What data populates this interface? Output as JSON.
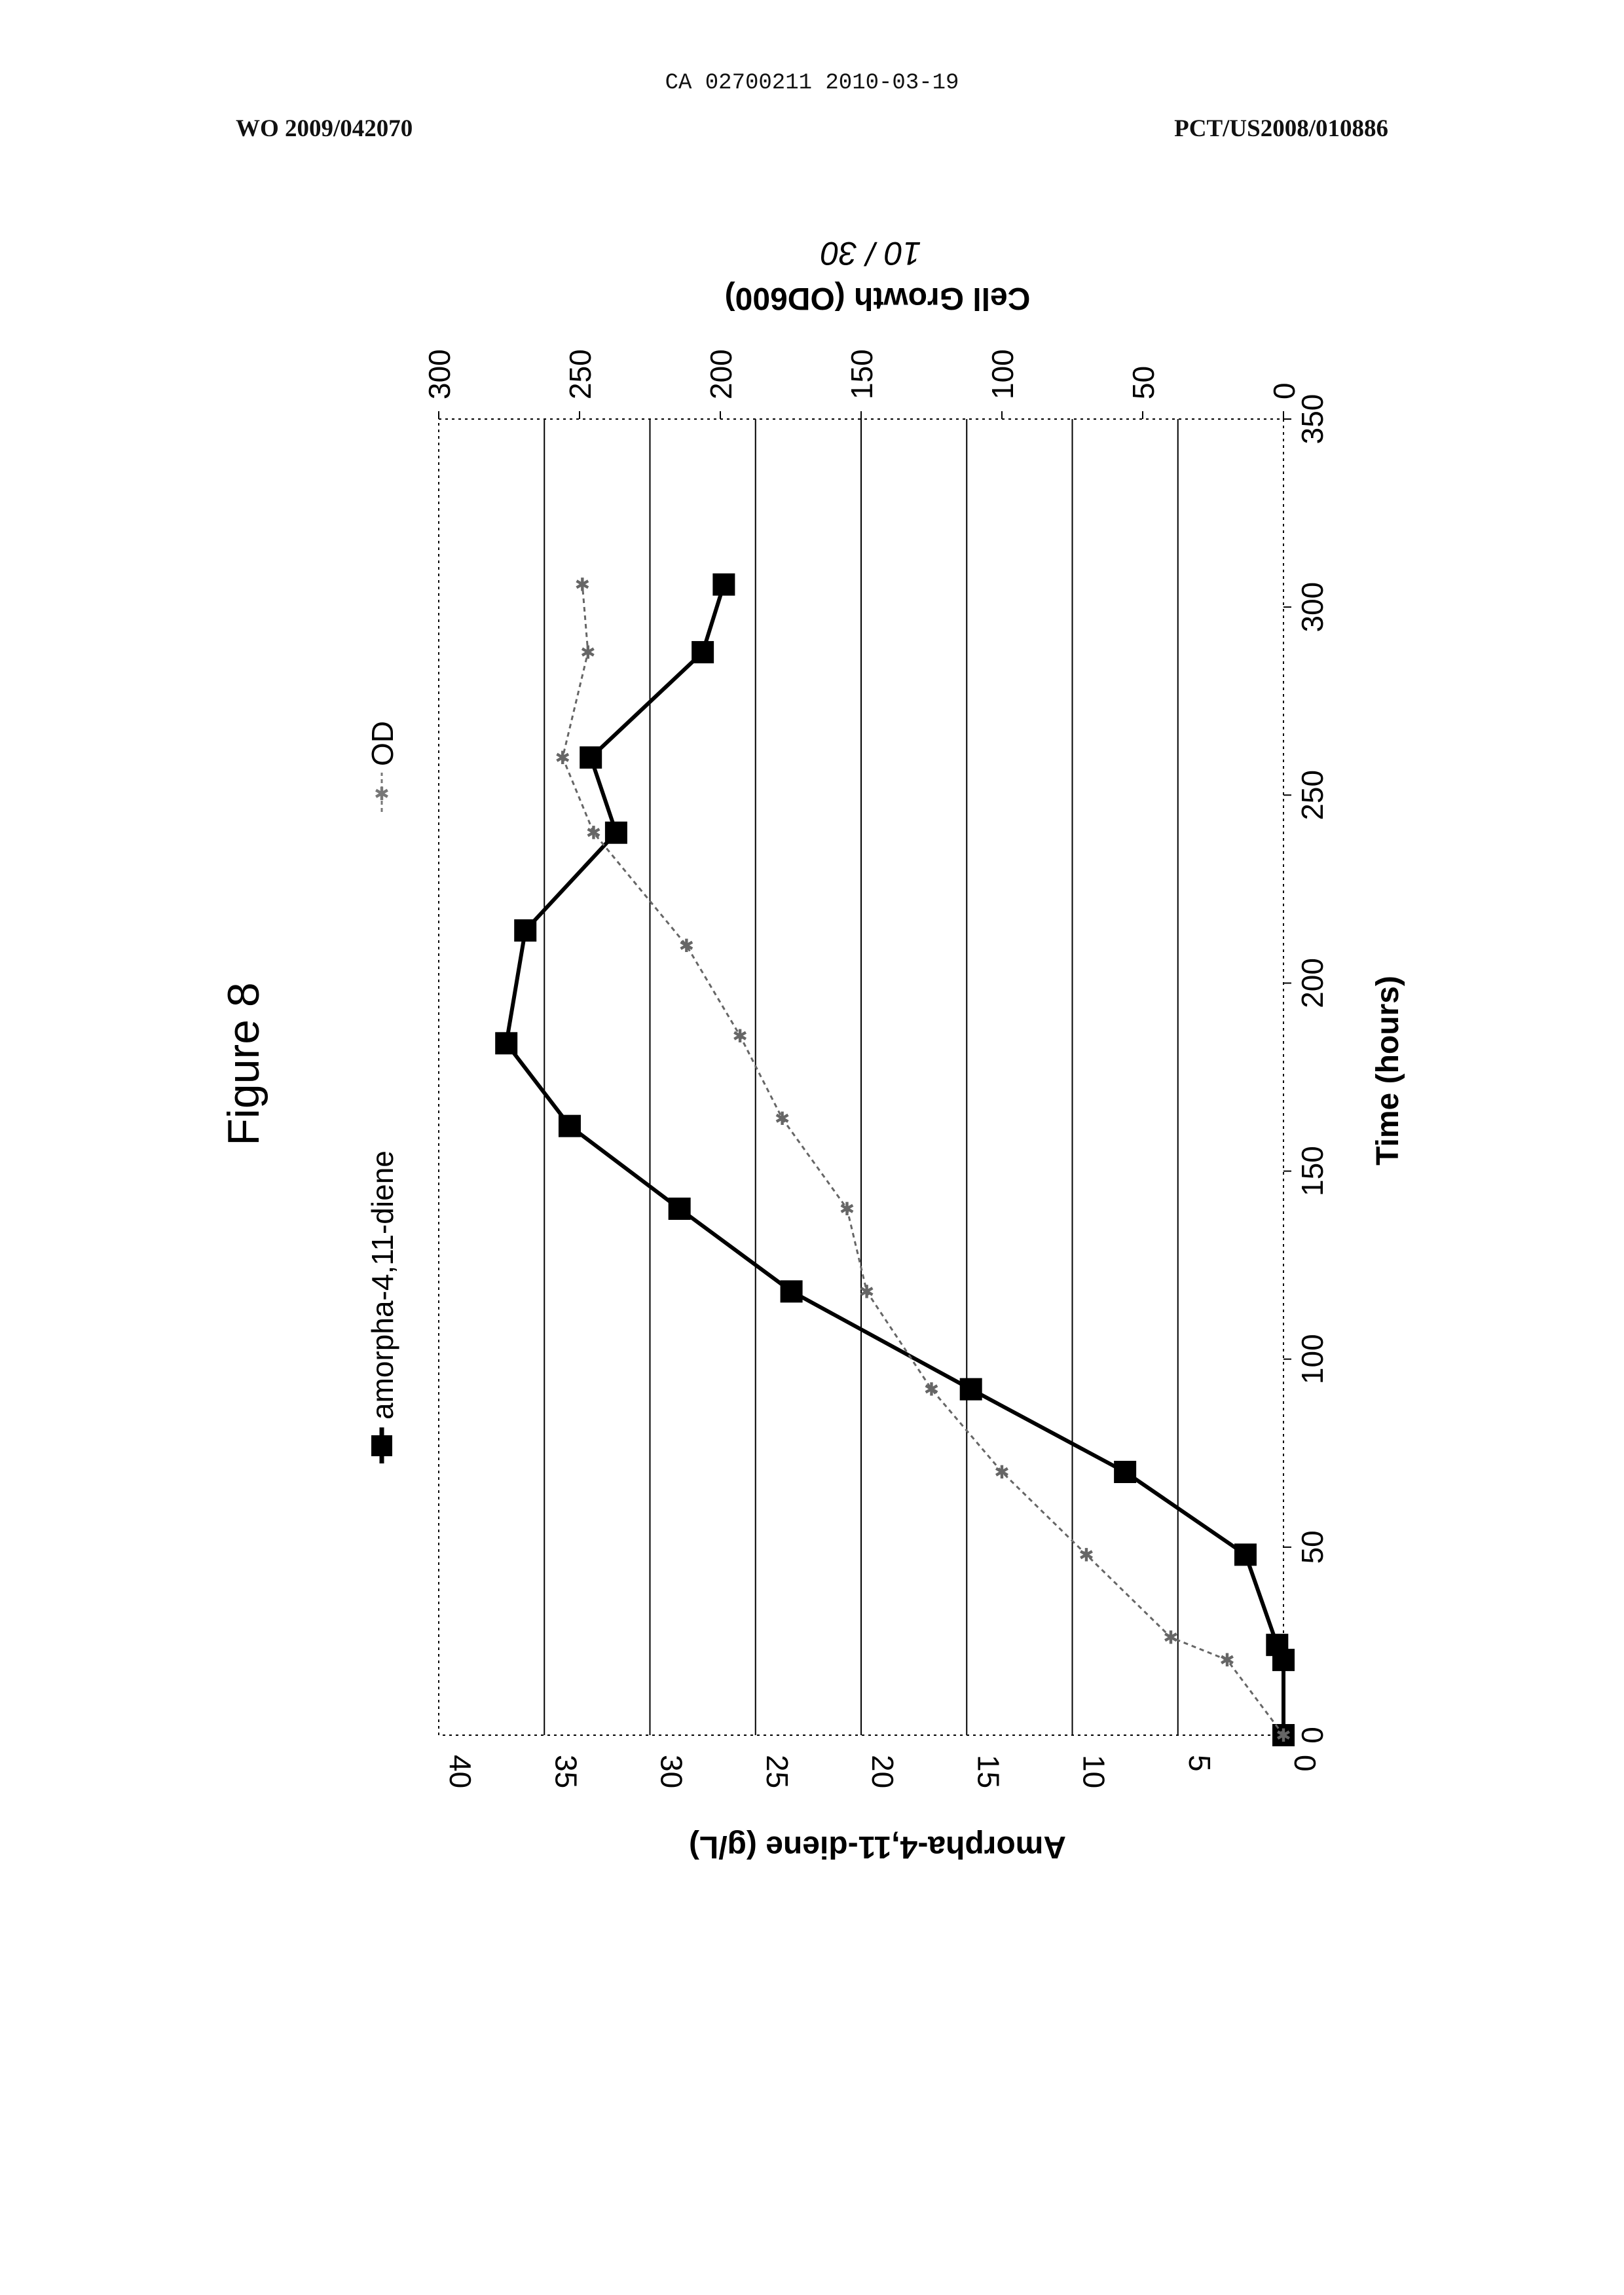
{
  "document": {
    "header_center": "CA 02700211 2010-03-19",
    "header_left": "WO 2009/042070",
    "header_right": "PCT/US2008/010886",
    "page_number": "10 / 30",
    "figure_title": "Figure 8"
  },
  "chart_data": {
    "type": "line",
    "title": "Figure 8",
    "xlabel": "Time (hours)",
    "ylabel": "Amorpha-4,11-diene (g/L)",
    "y2label": "Cell Growth (OD600)",
    "xlim": [
      0,
      350
    ],
    "ylim": [
      0,
      40
    ],
    "y2lim": [
      0,
      300
    ],
    "x_ticks": [
      "0",
      "50",
      "100",
      "150",
      "200",
      "250",
      "300",
      "350"
    ],
    "y_ticks": [
      "0",
      "5",
      "10",
      "15",
      "20",
      "25",
      "30",
      "35",
      "40"
    ],
    "y2_ticks": [
      "0",
      "50",
      "100",
      "150",
      "200",
      "250",
      "300"
    ],
    "grid": true,
    "legend_position": "top",
    "series": [
      {
        "name": "amorpha-4,11-diene",
        "axis": "left",
        "color": "#000000",
        "marker": "square",
        "x": [
          0,
          20,
          24,
          48,
          70,
          92,
          118,
          140,
          162,
          184,
          214,
          240,
          260,
          288,
          306
        ],
        "y": [
          0,
          0,
          0.3,
          1.8,
          7.5,
          14.8,
          23.3,
          28.6,
          33.8,
          36.8,
          35.9,
          31.6,
          32.8,
          27.5,
          26.5
        ]
      },
      {
        "name": "OD",
        "axis": "right",
        "color": "#666666",
        "marker": "star",
        "x": [
          0,
          20,
          26,
          48,
          70,
          92,
          118,
          140,
          164,
          186,
          210,
          240,
          260,
          288,
          306
        ],
        "y": [
          0,
          20,
          40,
          70,
          100,
          125,
          148,
          155,
          178,
          193,
          212,
          245,
          256,
          247,
          249
        ]
      }
    ]
  }
}
